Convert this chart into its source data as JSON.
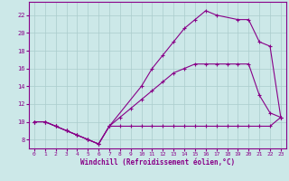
{
  "xlabel": "Windchill (Refroidissement éolien,°C)",
  "bg_color": "#cce8e8",
  "line_color": "#880088",
  "xlim": [
    -0.5,
    23.5
  ],
  "ylim": [
    7.0,
    23.5
  ],
  "xticks": [
    0,
    1,
    2,
    3,
    4,
    5,
    6,
    7,
    8,
    9,
    10,
    11,
    12,
    13,
    14,
    15,
    16,
    17,
    18,
    19,
    20,
    21,
    22,
    23
  ],
  "yticks": [
    8,
    10,
    12,
    14,
    16,
    18,
    20,
    22
  ],
  "grid_color": "#aacccc",
  "line1_x": [
    0,
    1,
    2,
    3,
    4,
    5,
    6,
    7,
    8,
    9,
    10,
    11,
    12,
    13,
    14,
    15,
    16,
    17,
    18,
    19,
    20,
    21,
    22,
    23
  ],
  "line1_y": [
    10.0,
    10.0,
    9.5,
    9.0,
    8.5,
    8.0,
    7.5,
    9.5,
    9.5,
    9.5,
    9.5,
    9.5,
    9.5,
    9.5,
    9.5,
    9.5,
    9.5,
    9.5,
    9.5,
    9.5,
    9.5,
    9.5,
    9.5,
    10.5
  ],
  "line2_x": [
    0,
    1,
    2,
    3,
    4,
    5,
    6,
    7,
    8,
    9,
    10,
    11,
    12,
    13,
    14,
    15,
    16,
    17,
    18,
    19,
    20,
    21,
    22,
    23
  ],
  "line2_y": [
    10.0,
    10.0,
    9.5,
    9.0,
    8.5,
    8.0,
    7.5,
    9.5,
    10.5,
    11.5,
    12.5,
    13.5,
    14.5,
    15.5,
    16.0,
    16.5,
    16.5,
    16.5,
    16.5,
    16.5,
    16.5,
    13.0,
    11.0,
    10.5
  ],
  "line3_x": [
    0,
    1,
    2,
    3,
    4,
    5,
    6,
    7,
    10,
    11,
    12,
    13,
    14,
    15,
    16,
    17,
    19,
    20,
    21,
    22,
    23
  ],
  "line3_y": [
    10.0,
    10.0,
    9.5,
    9.0,
    8.5,
    8.0,
    7.5,
    9.5,
    14.0,
    16.0,
    17.5,
    19.0,
    20.5,
    21.5,
    22.5,
    22.0,
    21.5,
    21.5,
    19.0,
    18.5,
    10.5
  ]
}
